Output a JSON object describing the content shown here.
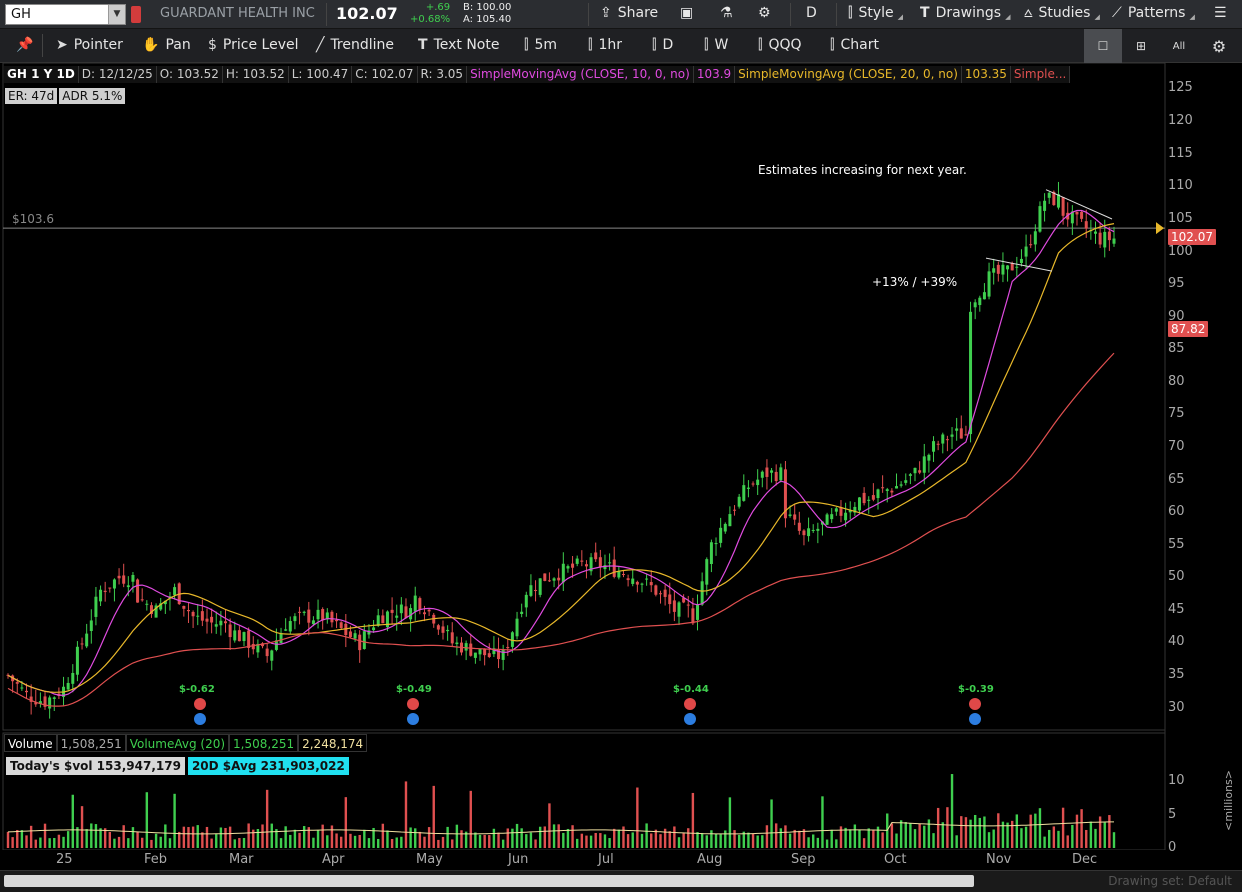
{
  "topbar": {
    "symbol": "GH",
    "company": "GUARDANT HEALTH INC",
    "last": "102.07",
    "change": "+.69",
    "change_pct": "+0.68%",
    "bid": "B: 100.00",
    "ask": "A: 105.40",
    "share": "Share",
    "timeframe": "D",
    "style": "Style",
    "drawings": "Drawings",
    "studies": "Studies",
    "patterns": "Patterns"
  },
  "drawbar": {
    "pointer": "Pointer",
    "pan": "Pan",
    "price_level": "Price Level",
    "trendline": "Trendline",
    "text_note": "Text Note",
    "p1": "5m",
    "p2": "1hr",
    "p3": "D",
    "p4": "W",
    "p5": "QQQ",
    "p6": "Chart",
    "all": "All"
  },
  "study_line": {
    "period": "GH 1 Y 1D",
    "date": "D: 12/12/25",
    "open": "O: 103.52",
    "high": "H: 103.52",
    "low": "L: 100.47",
    "close": "C: 102.07",
    "range": "R: 3.05",
    "sma10": "SimpleMovingAvg (CLOSE, 10, 0, no)",
    "sma10_val": "103.9",
    "sma20": "SimpleMovingAvg (CLOSE, 20, 0, no)",
    "sma20_val": "103.35",
    "sma_more": "Simple..."
  },
  "labels": {
    "er": "ER: 47d",
    "adr": "ADR 5.1%",
    "price_line": "$103.6",
    "note1": "Estimates increasing for next year.",
    "note2": "+13% / +39%",
    "eps1": "$-0.62",
    "eps2": "$-0.49",
    "eps3": "$-0.44",
    "eps4": "$-0.39",
    "tag_last": "102.07",
    "tag_sma": "87.82"
  },
  "volume": {
    "label": "Volume",
    "value": "1,508,251",
    "avg_label": "VolumeAvg (20)",
    "avg_value": "1,508,251",
    "avg_value2": "2,248,174",
    "todays": "Today's $vol 153,947,179",
    "avg20": "20D $Avg 231,903,022",
    "unit": "<millions>"
  },
  "bottom": {
    "drawing_set": "Drawing set: Default"
  },
  "yticks": [
    "125",
    "120",
    "115",
    "110",
    "105",
    "100",
    "95",
    "90",
    "85",
    "80",
    "75",
    "70",
    "65",
    "60",
    "55",
    "50",
    "45",
    "40",
    "35",
    "30"
  ],
  "vticks": [
    "10",
    "5",
    "0"
  ],
  "xticks": [
    "25",
    "Feb",
    "Mar",
    "Apr",
    "May",
    "Jun",
    "Jul",
    "Aug",
    "Sep",
    "Oct",
    "Nov",
    "Dec"
  ],
  "colors": {
    "up": "#3fcf4f",
    "down": "#e05050",
    "sma10": "#e04be0",
    "sma20": "#e8b82a",
    "sma50": "#e05050"
  },
  "chart_data": {
    "type": "candlestick",
    "title": "GH 1 Y 1D",
    "ylim": [
      27,
      128
    ],
    "monthly_closes": [
      {
        "month": "Jan",
        "values": [
          35,
          32,
          31,
          33,
          40,
          48,
          50
        ]
      },
      {
        "month": "Feb",
        "values": [
          47,
          45,
          48,
          44,
          43
        ]
      },
      {
        "month": "Mar",
        "values": [
          42,
          40,
          38,
          43,
          44
        ]
      },
      {
        "month": "Apr",
        "values": [
          44,
          42,
          40,
          44,
          45
        ]
      },
      {
        "month": "May",
        "values": [
          47,
          44,
          40,
          39,
          38
        ]
      },
      {
        "month": "Jun",
        "values": [
          40,
          48,
          50,
          51,
          52
        ]
      },
      {
        "month": "Jul",
        "values": [
          52,
          51,
          50,
          48,
          45
        ]
      },
      {
        "month": "Aug",
        "values": [
          44,
          55,
          60,
          64,
          66
        ]
      },
      {
        "month": "Sep",
        "values": [
          60,
          56,
          58,
          60,
          62
        ]
      },
      {
        "month": "Oct",
        "values": [
          63,
          64,
          66,
          70,
          72
        ]
      },
      {
        "month": "Nov",
        "values": [
          92,
          96,
          97,
          100,
          108
        ]
      },
      {
        "month": "Dec",
        "values": [
          106,
          104,
          102
        ]
      }
    ]
  }
}
